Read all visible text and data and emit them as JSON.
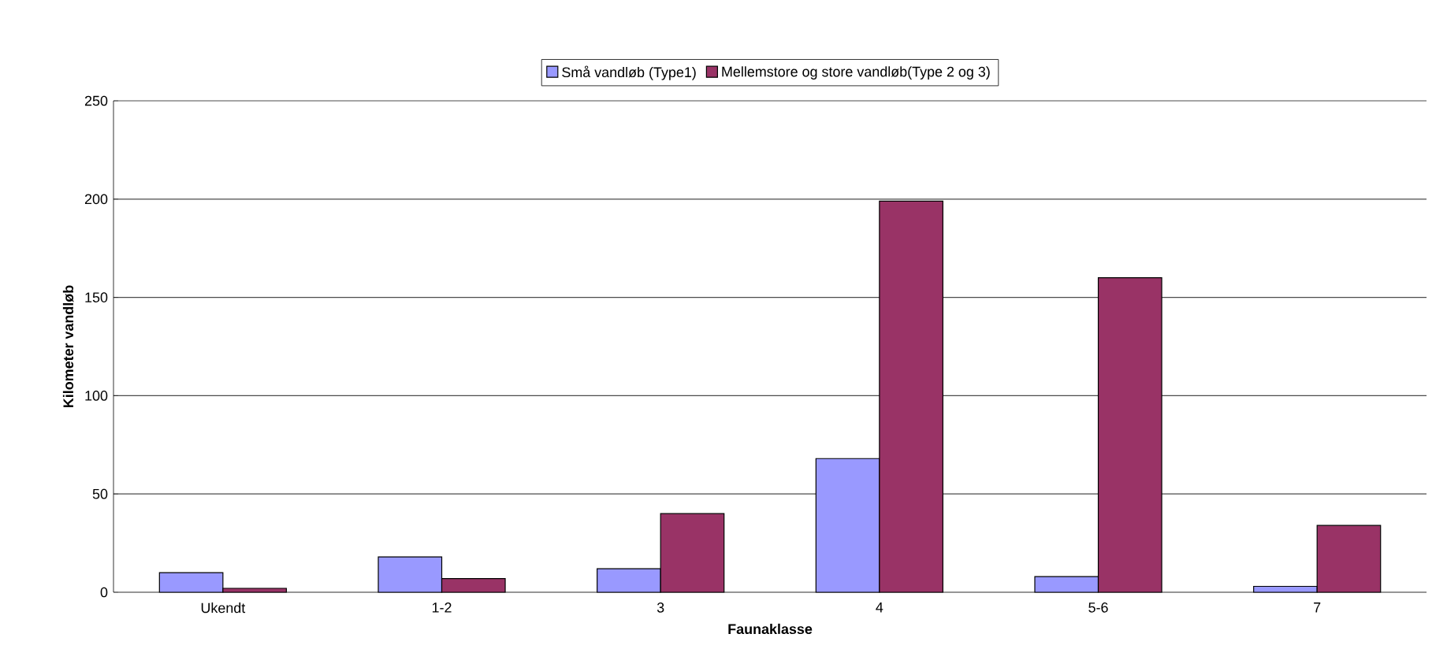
{
  "chart_data": {
    "type": "bar",
    "xlabel": "Faunaklasse",
    "ylabel": "Kilometer vandløb",
    "categories": [
      "Ukendt",
      "1-2",
      "3",
      "4",
      "5-6",
      "7"
    ],
    "series": [
      {
        "name": "Små vandløb (Type1)",
        "color": "#9999ff",
        "values": [
          10,
          18,
          12,
          68,
          8,
          3
        ]
      },
      {
        "name": "Mellemstore og store vandløb(Type 2 og 3)",
        "color": "#993366",
        "values": [
          2,
          7,
          40,
          199,
          160,
          34
        ]
      }
    ],
    "ylim": [
      0,
      250
    ],
    "yticks": [
      0,
      50,
      100,
      150,
      200,
      250
    ],
    "grid": "y",
    "legend": "top"
  }
}
